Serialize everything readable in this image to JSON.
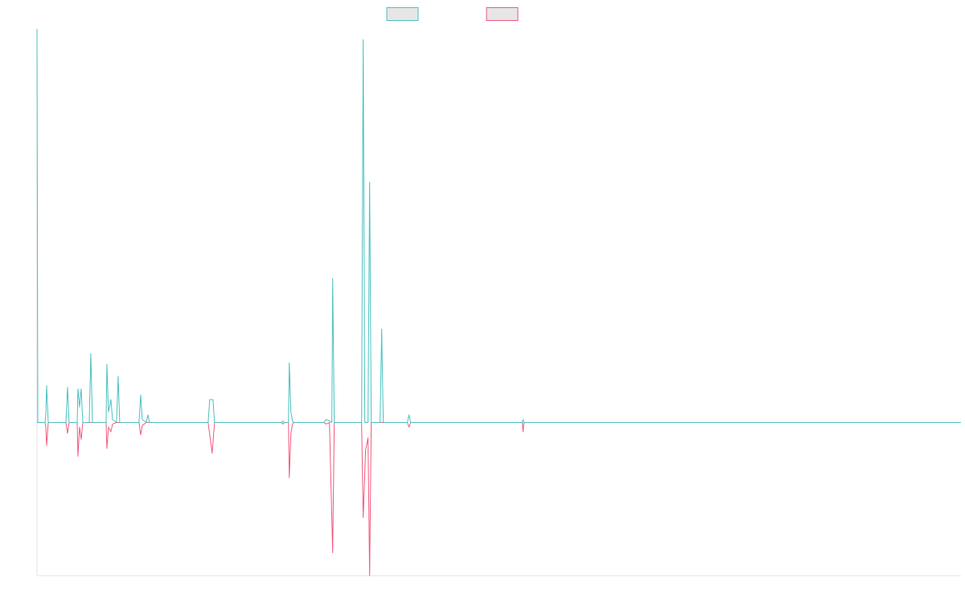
{
  "chart_data": {
    "type": "line",
    "title": "",
    "xlabel": "",
    "ylabel": "",
    "grid": false,
    "legend_position": "top-center",
    "xlim": [
      0,
      1150
    ],
    "ylim": [
      -100,
      257
    ],
    "baseline": 0,
    "series": [
      {
        "color": "#4bc0c0",
        "points": [
          [
            0,
            257
          ],
          [
            1,
            0
          ],
          [
            10,
            0
          ],
          [
            11,
            5
          ],
          [
            12,
            24
          ],
          [
            14,
            0
          ],
          [
            36,
            0
          ],
          [
            38,
            23
          ],
          [
            40,
            0
          ],
          [
            50,
            0
          ],
          [
            51,
            22
          ],
          [
            53,
            10
          ],
          [
            55,
            22
          ],
          [
            57,
            0
          ],
          [
            65,
            0
          ],
          [
            67,
            45
          ],
          [
            69,
            0
          ],
          [
            86,
            0
          ],
          [
            87,
            38
          ],
          [
            89,
            7
          ],
          [
            92,
            15
          ],
          [
            94,
            2
          ],
          [
            99,
            0
          ],
          [
            101,
            30
          ],
          [
            103,
            0
          ],
          [
            127,
            0
          ],
          [
            129,
            18
          ],
          [
            131,
            2
          ],
          [
            136,
            0
          ],
          [
            138,
            5
          ],
          [
            140,
            0
          ],
          [
            213,
            0
          ],
          [
            215,
            15
          ],
          [
            219,
            15
          ],
          [
            221,
            0
          ],
          [
            304,
            0
          ],
          [
            306,
            1
          ],
          [
            308,
            0
          ],
          [
            313,
            0
          ],
          [
            314,
            39
          ],
          [
            316,
            7
          ],
          [
            318,
            1
          ],
          [
            320,
            0
          ],
          [
            357,
            0
          ],
          [
            360,
            2
          ],
          [
            364,
            1
          ],
          [
            367,
            0
          ],
          [
            368,
            94
          ],
          [
            370,
            0
          ],
          [
            404,
            0
          ],
          [
            406,
            250
          ],
          [
            408,
            0
          ],
          [
            412,
            0
          ],
          [
            414,
            157
          ],
          [
            416,
            0
          ],
          [
            427,
            0
          ],
          [
            429,
            61
          ],
          [
            431,
            0
          ],
          [
            461,
            0
          ],
          [
            463,
            5
          ],
          [
            465,
            0
          ],
          [
            604,
            0
          ],
          [
            605,
            2
          ],
          [
            606,
            0
          ],
          [
            1150,
            0
          ]
        ]
      },
      {
        "color": "#f0587e",
        "points": [
          [
            0,
            0
          ],
          [
            1,
            0
          ],
          [
            10,
            0
          ],
          [
            11,
            -3
          ],
          [
            12,
            -15
          ],
          [
            14,
            0
          ],
          [
            36,
            0
          ],
          [
            38,
            -7
          ],
          [
            40,
            0
          ],
          [
            50,
            0
          ],
          [
            51,
            -22
          ],
          [
            53,
            -3
          ],
          [
            55,
            -11
          ],
          [
            57,
            0
          ],
          [
            86,
            0
          ],
          [
            87,
            -17
          ],
          [
            89,
            -3
          ],
          [
            92,
            -6
          ],
          [
            94,
            -1
          ],
          [
            99,
            0
          ],
          [
            127,
            0
          ],
          [
            129,
            -8
          ],
          [
            131,
            -2
          ],
          [
            136,
            0
          ],
          [
            213,
            0
          ],
          [
            218,
            -20
          ],
          [
            221,
            0
          ],
          [
            304,
            0
          ],
          [
            306,
            -1
          ],
          [
            308,
            0
          ],
          [
            313,
            0
          ],
          [
            314,
            -36
          ],
          [
            316,
            -7
          ],
          [
            318,
            -1
          ],
          [
            320,
            0
          ],
          [
            357,
            0
          ],
          [
            360,
            -1
          ],
          [
            364,
            0
          ],
          [
            368,
            -85
          ],
          [
            370,
            0
          ],
          [
            404,
            0
          ],
          [
            406,
            -62
          ],
          [
            409,
            -18
          ],
          [
            412,
            -10
          ],
          [
            414,
            -100
          ],
          [
            416,
            0
          ],
          [
            461,
            0
          ],
          [
            463,
            -3
          ],
          [
            465,
            0
          ],
          [
            604,
            0
          ],
          [
            605,
            -6
          ],
          [
            606,
            0
          ],
          [
            1150,
            0
          ]
        ]
      }
    ]
  }
}
